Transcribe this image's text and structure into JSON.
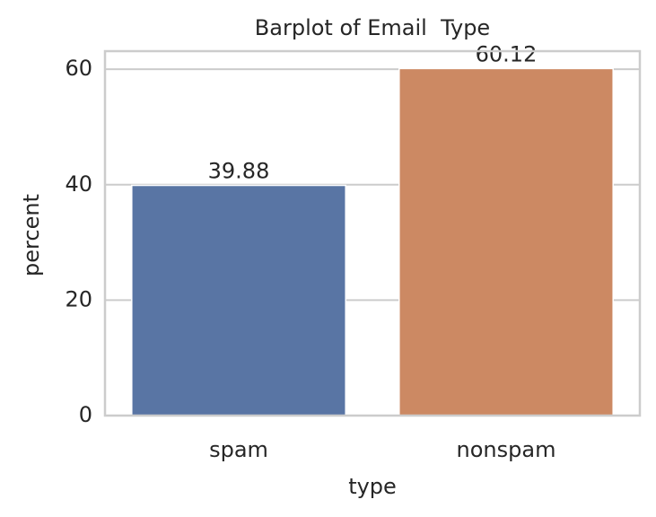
{
  "chart_data": {
    "type": "bar",
    "title": "Barplot of Email  Type",
    "x_label": "type",
    "y_label": "percent",
    "categories": [
      "spam",
      "nonspam"
    ],
    "values": [
      39.88,
      60.12
    ],
    "value_labels": [
      "39.88",
      "60.12"
    ],
    "colors": [
      "#5975a4",
      "#cc8963"
    ],
    "ylim": [
      0,
      63.13
    ],
    "yticks": [
      0,
      20,
      40,
      60
    ],
    "grid": true
  }
}
